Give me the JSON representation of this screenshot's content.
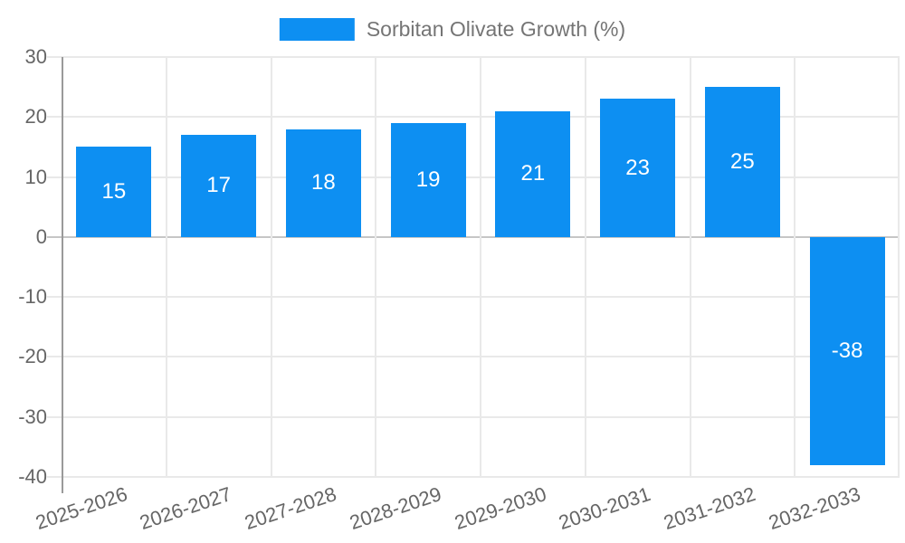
{
  "chart_data": {
    "type": "bar",
    "title": "Sorbitan Olivate Growth (%)",
    "legend_position": "top",
    "categories": [
      "2025-2026",
      "2026-2027",
      "2027-2028",
      "2028-2029",
      "2029-2030",
      "2030-2031",
      "2031-2032",
      "2032-2033"
    ],
    "series": [
      {
        "name": "Sorbitan Olivate Growth (%)",
        "values": [
          15,
          17,
          18,
          19,
          21,
          23,
          25,
          -38
        ]
      }
    ],
    "xlabel": "",
    "ylabel": "",
    "ylim": [
      -40,
      30
    ],
    "yticks": [
      30,
      20,
      10,
      0,
      -10,
      -20,
      -30,
      -40
    ],
    "grid": true,
    "colors": {
      "bar": "#0d8ff2",
      "bar_label": "#ffffff",
      "axis_text": "#666666",
      "legend_text": "#757575",
      "gridline": "#e9e9e9",
      "zero_line": "#c6c6c6",
      "axis_line": "#9a9a9a",
      "background": "#ffffff"
    }
  }
}
